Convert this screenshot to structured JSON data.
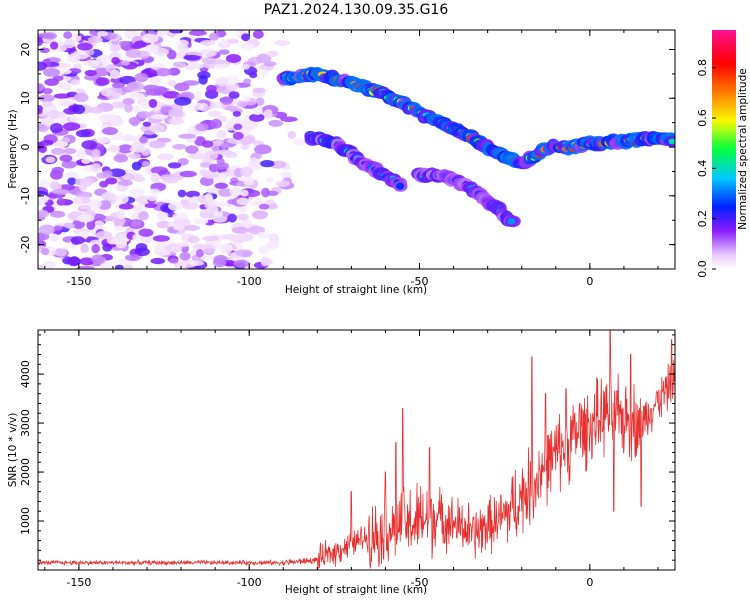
{
  "title": "PAZ1.2024.130.09.35.G16",
  "chart_data": [
    {
      "type": "heatmap",
      "xlabel": "Height of straight line (km)",
      "ylabel": "Frequency (Hz)",
      "xlim": [
        -162,
        25
      ],
      "ylim": [
        -25,
        24
      ],
      "x_ticks": [
        -150,
        -100,
        -50,
        0
      ],
      "y_ticks": [
        -20,
        -10,
        0,
        10,
        20
      ],
      "colorbar": {
        "label": "Normalized spectral amplitude",
        "range": [
          0,
          0.95
        ],
        "ticks": [
          0.0,
          0.2,
          0.4,
          0.6,
          0.8
        ],
        "colors": [
          "#ffffff",
          "#e8c8ff",
          "#8a1cff",
          "#0020ff",
          "#00c8ff",
          "#00ff40",
          "#f8f800",
          "#ff7a00",
          "#ff0000",
          "#ff1090"
        ]
      },
      "noise_region": {
        "x": [
          -162,
          -85
        ],
        "y": [
          -25,
          24
        ],
        "amplitude": [
          0.02,
          0.2
        ]
      },
      "ridges": [
        {
          "name": "upper branch",
          "points": [
            [
              -90,
              14
            ],
            [
              -80,
              15
            ],
            [
              -70,
              13
            ],
            [
              -60,
              11
            ],
            [
              -50,
              7
            ],
            [
              -45,
              5.5
            ],
            [
              -35,
              2
            ],
            [
              -25,
              -2
            ],
            [
              -20,
              -3.5
            ],
            [
              -12,
              0
            ],
            [
              -5,
              0
            ],
            [
              0,
              0.8
            ],
            [
              10,
              1.2
            ],
            [
              18,
              1.8
            ],
            [
              25,
              1.5
            ]
          ],
          "amplitude": [
            0.25,
            0.85
          ]
        },
        {
          "name": "middle branch",
          "points": [
            [
              -82,
              2
            ],
            [
              -75,
              1
            ],
            [
              -70,
              -1.5
            ],
            [
              -65,
              -4
            ],
            [
              -58,
              -6.5
            ],
            [
              -55,
              -8
            ]
          ],
          "amplitude": [
            0.2,
            0.45
          ]
        },
        {
          "name": "lower branch",
          "points": [
            [
              -50,
              -5.5
            ],
            [
              -42,
              -6
            ],
            [
              -36,
              -8
            ],
            [
              -30,
              -11
            ],
            [
              -25,
              -14
            ],
            [
              -22,
              -16
            ]
          ],
          "amplitude": [
            0.2,
            0.4
          ]
        }
      ]
    },
    {
      "type": "line",
      "xlabel": "Height of straight line (km)",
      "ylabel": "SNR (10 * v/v)",
      "xlim": [
        -162,
        25
      ],
      "ylim": [
        0,
        4900
      ],
      "x_ticks": [
        -150,
        -100,
        -50,
        0
      ],
      "y_ticks": [
        1000,
        2000,
        3000,
        4000
      ],
      "color": "#e83030",
      "series": [
        {
          "segments": [
            {
              "x": [
                -162,
                -90
              ],
              "mean": [
                150,
                150
              ],
              "noise": 40
            },
            {
              "x": [
                -90,
                -80
              ],
              "mean": [
                150,
                200
              ],
              "noise": 60
            },
            {
              "x": [
                -80,
                -65
              ],
              "mean": [
                200,
                700
              ],
              "noise": 250
            },
            {
              "x": [
                -65,
                -55
              ],
              "mean": [
                700,
                900
              ],
              "noise": 600
            },
            {
              "x": [
                -55,
                -45
              ],
              "mean": [
                900,
                1100
              ],
              "noise": 700
            },
            {
              "x": [
                -45,
                -35
              ],
              "mean": [
                1100,
                800
              ],
              "noise": 500
            },
            {
              "x": [
                -35,
                -25
              ],
              "mean": [
                700,
                1100
              ],
              "noise": 500
            },
            {
              "x": [
                -25,
                -15
              ],
              "mean": [
                1100,
                1900
              ],
              "noise": 700
            },
            {
              "x": [
                -15,
                -5
              ],
              "mean": [
                2000,
                2700
              ],
              "noise": 700
            },
            {
              "x": [
                -5,
                5
              ],
              "mean": [
                2700,
                3200
              ],
              "noise": 700
            },
            {
              "x": [
                5,
                15
              ],
              "mean": [
                3200,
                3000
              ],
              "noise": 700
            },
            {
              "x": [
                15,
                25
              ],
              "mean": [
                3000,
                3900
              ],
              "noise": 400
            }
          ],
          "spikes": [
            [
              -55,
              3300
            ],
            [
              -57,
              2600
            ],
            [
              -60,
              2000
            ],
            [
              -70,
              1600
            ],
            [
              -47,
              2500
            ],
            [
              -17,
              4350
            ],
            [
              -13,
              3600
            ],
            [
              -7,
              3700
            ],
            [
              -3,
              3400
            ],
            [
              6,
              4900
            ],
            [
              7,
              1200
            ],
            [
              12,
              4400
            ],
            [
              15,
              1300
            ],
            [
              18,
              3300
            ],
            [
              24,
              4700
            ]
          ]
        }
      ]
    }
  ]
}
